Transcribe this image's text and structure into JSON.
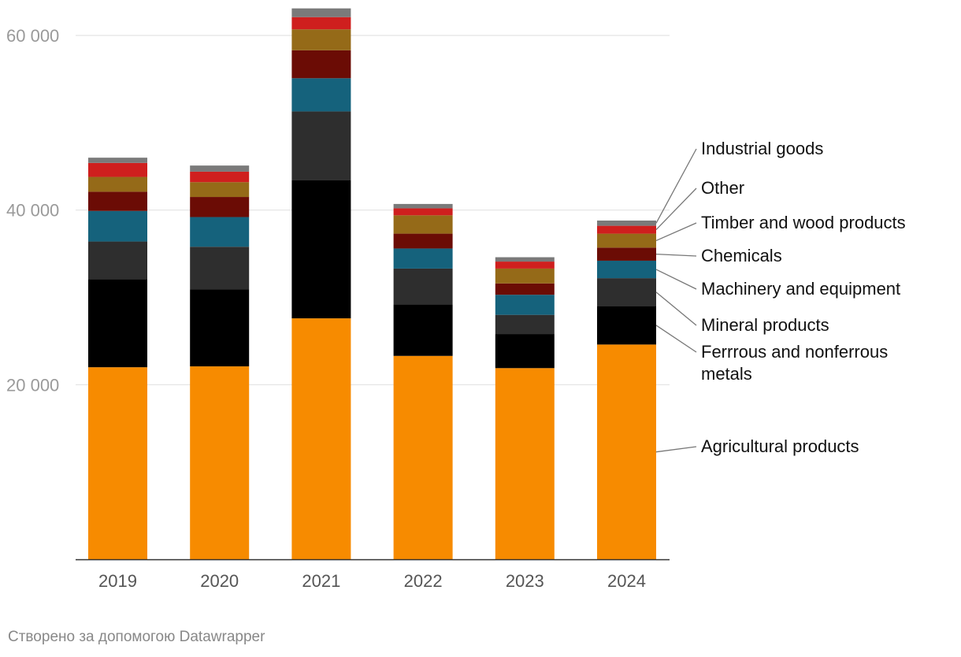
{
  "chart_data": {
    "type": "bar",
    "stacked": true,
    "title": "",
    "xlabel": "",
    "ylabel": "",
    "ylim": [
      0,
      60000
    ],
    "yticks": [
      20000,
      40000,
      60000
    ],
    "ytick_labels": [
      "20 000",
      "40 000",
      "60 000"
    ],
    "categories": [
      "2019",
      "2020",
      "2021",
      "2022",
      "2023",
      "2024"
    ],
    "series": [
      {
        "name": "Agricultural products",
        "color": "#f78b00",
        "values": [
          22000,
          22100,
          27600,
          23300,
          21900,
          24600
        ]
      },
      {
        "name": "Ferrrous and nonferrous metals",
        "color": "#000000",
        "values": [
          10100,
          8800,
          15800,
          5900,
          3900,
          4400
        ]
      },
      {
        "name": "Mineral products",
        "color": "#2e2e2e",
        "values": [
          4300,
          4900,
          7900,
          4100,
          2200,
          3200
        ]
      },
      {
        "name": "Machinery and equipment",
        "color": "#15627c",
        "values": [
          3500,
          3400,
          3800,
          2300,
          2300,
          2000
        ]
      },
      {
        "name": "Chemicals",
        "color": "#6b0c05",
        "values": [
          2200,
          2300,
          3200,
          1700,
          1300,
          1500
        ]
      },
      {
        "name": "Timber and wood products",
        "color": "#956a18",
        "values": [
          1700,
          1700,
          2400,
          2100,
          1700,
          1600
        ]
      },
      {
        "name": "Other",
        "color": "#cf1f1e",
        "values": [
          1600,
          1200,
          1400,
          800,
          800,
          900
        ]
      },
      {
        "name": "Industrial goods",
        "color": "#7a7a7a",
        "values": [
          600,
          700,
          1000,
          500,
          500,
          600
        ]
      }
    ],
    "legend_labels": [
      {
        "series": "Industrial goods",
        "lines": [
          "Industrial goods"
        ]
      },
      {
        "series": "Other",
        "lines": [
          "Other"
        ]
      },
      {
        "series": "Timber and wood products",
        "lines": [
          "Timber and wood products"
        ]
      },
      {
        "series": "Chemicals",
        "lines": [
          "Chemicals"
        ]
      },
      {
        "series": "Machinery and equipment",
        "lines": [
          "Machinery and equipment"
        ]
      },
      {
        "series": "Mineral products",
        "lines": [
          "Mineral products"
        ]
      },
      {
        "series": "Ferrrous and nonferrous metals",
        "lines": [
          "Ferrrous and nonferrous",
          "metals"
        ]
      },
      {
        "series": "Agricultural products",
        "lines": [
          "Agricultural products"
        ]
      }
    ],
    "legend_placement": "right, direct labels attached to 2024 bar"
  },
  "credit": "Створено за допомогою Datawrapper"
}
